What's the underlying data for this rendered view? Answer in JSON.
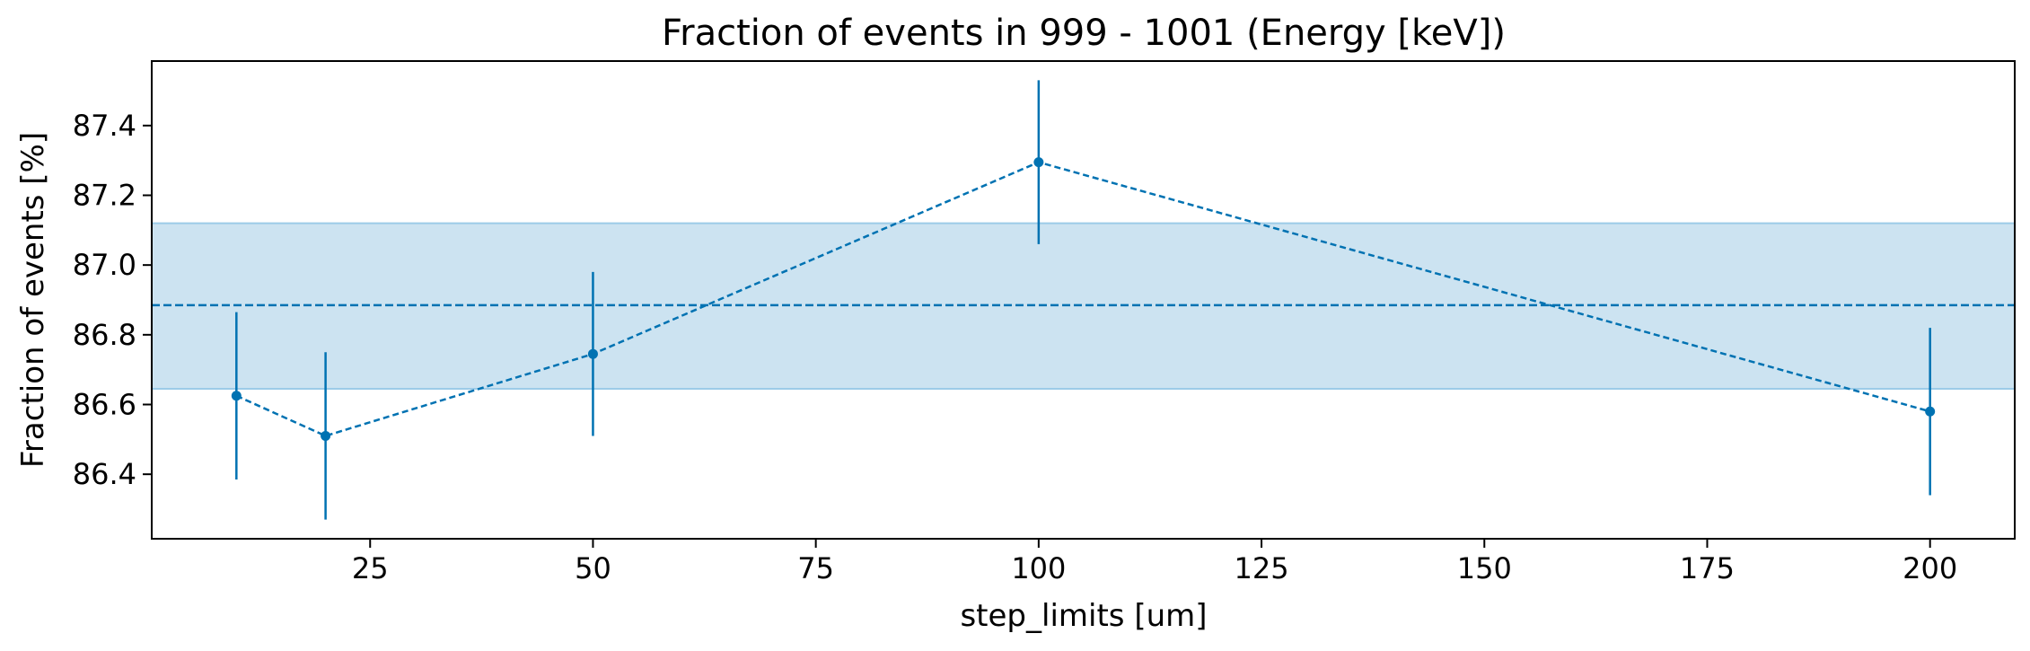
{
  "chart_data": {
    "type": "scatter",
    "title": "Fraction of events in 999 - 1001 (Energy [keV])",
    "xlabel": "step_limits [um]",
    "ylabel": "Fraction of events [%]",
    "xlim": [
      0.5,
      209.5
    ],
    "ylim": [
      86.215,
      87.585
    ],
    "x_ticks": [
      25,
      50,
      75,
      100,
      125,
      150,
      175,
      200
    ],
    "y_ticks": [
      86.4,
      86.6,
      86.8,
      87.0,
      87.2,
      87.4
    ],
    "grid": false,
    "series": [
      {
        "x": [
          10,
          20,
          50,
          100,
          200
        ],
        "y": [
          86.625,
          86.51,
          86.745,
          87.295,
          86.58
        ],
        "yerr": [
          0.24,
          0.24,
          0.235,
          0.235,
          0.24
        ],
        "line_style": "dashed",
        "marker": "circle"
      }
    ],
    "mean_line": 86.885,
    "band": [
      86.645,
      87.12
    ],
    "colors": {
      "series": "#0072b2",
      "band": "#cce3f1",
      "band_edge": "#9ccbe8"
    }
  }
}
